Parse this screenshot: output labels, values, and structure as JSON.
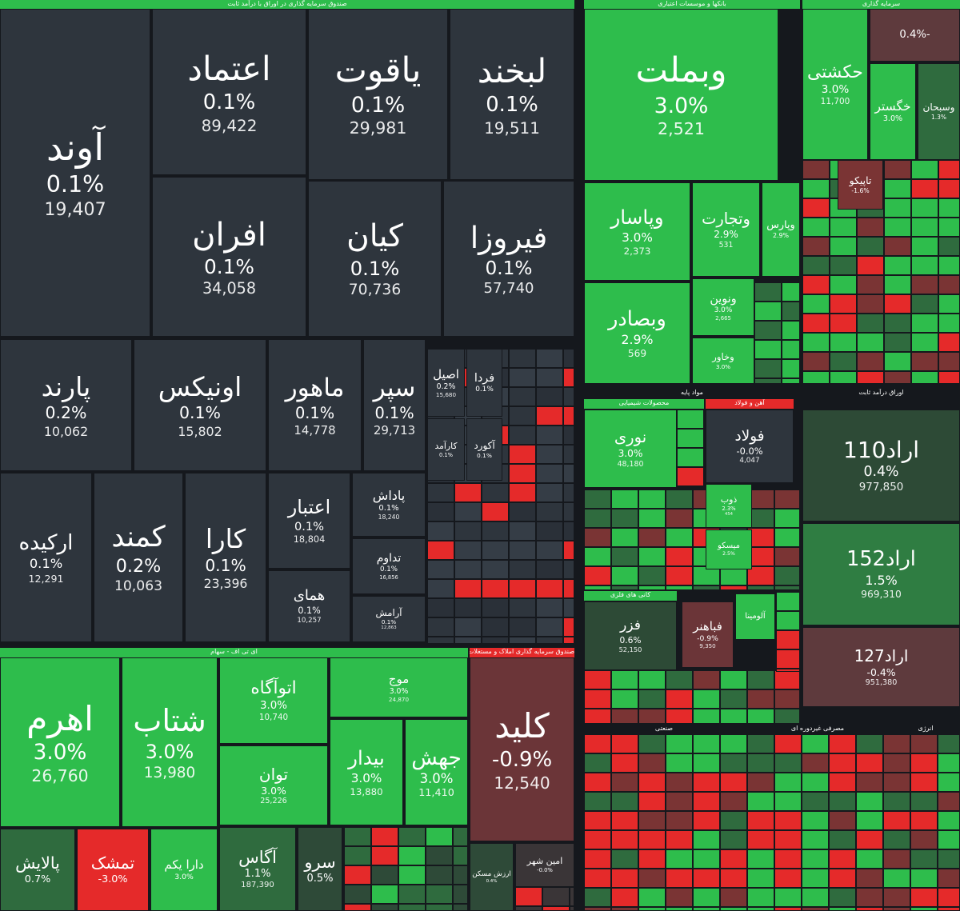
{
  "sections": [
    {
      "title": "صندوق سرمایه گذاری در اوراق با درآمد ثابت",
      "tiles": [
        {
          "name": "آوند",
          "change": "0.1%",
          "volume": "19,407",
          "color": "#2e353d"
        },
        {
          "name": "اعتماد",
          "change": "0.1%",
          "volume": "89,422",
          "color": "#2e353d"
        },
        {
          "name": "یاقوت",
          "change": "0.1%",
          "volume": "29,981",
          "color": "#2e353d"
        },
        {
          "name": "لبخند",
          "change": "0.1%",
          "volume": "19,511",
          "color": "#2e353d"
        },
        {
          "name": "افران",
          "change": "0.1%",
          "volume": "34,058",
          "color": "#2e353d"
        },
        {
          "name": "کیان",
          "change": "0.1%",
          "volume": "70,736",
          "color": "#2e353d"
        },
        {
          "name": "فیروزا",
          "change": "0.1%",
          "volume": "57,740",
          "color": "#2e353d"
        },
        {
          "name": "پارند",
          "change": "0.2%",
          "volume": "10,062",
          "color": "#2e353d"
        },
        {
          "name": "اونیکس",
          "change": "0.1%",
          "volume": "15,802",
          "color": "#2e353d"
        },
        {
          "name": "ماهور",
          "change": "0.1%",
          "volume": "14,778",
          "color": "#2e353d"
        },
        {
          "name": "سپر",
          "change": "0.1%",
          "volume": "29,713",
          "color": "#2e353d"
        },
        {
          "name": "ارکیده",
          "change": "0.1%",
          "volume": "12,291",
          "color": "#2e353d"
        },
        {
          "name": "کمند",
          "change": "0.2%",
          "volume": "10,063",
          "color": "#2e353d"
        },
        {
          "name": "کارا",
          "change": "0.1%",
          "volume": "23,396",
          "color": "#2e353d"
        },
        {
          "name": "اعتبار",
          "change": "0.1%",
          "volume": "18,804",
          "color": "#2e353d"
        },
        {
          "name": "پاداش",
          "change": "0.1%",
          "volume": "18,240",
          "color": "#2e353d"
        },
        {
          "name": "تداوم",
          "change": "0.1%",
          "volume": "16,856",
          "color": "#2e353d"
        },
        {
          "name": "همای",
          "change": "0.1%",
          "volume": "10,257",
          "color": "#2e353d"
        },
        {
          "name": "آرامش",
          "change": "0.1%",
          "volume": "12,863",
          "color": "#2e353d"
        },
        {
          "name": "اصیل",
          "change": "0.2%",
          "volume": "15,680",
          "color": "#2e353d"
        },
        {
          "name": "فردا",
          "change": "0.1%",
          "color": "#2e353d"
        },
        {
          "name": "کارآمد",
          "change": "0.1%",
          "color": "#2e353d"
        },
        {
          "name": "آکورد",
          "change": "0.1%",
          "color": "#2e353d"
        }
      ]
    },
    {
      "title": "بانکها و موسسات اعتباری",
      "tiles": [
        {
          "name": "وبملت",
          "change": "3.0%",
          "volume": "2,521",
          "color": "#2ebd4c"
        },
        {
          "name": "وپاسار",
          "change": "3.0%",
          "volume": "2,373",
          "color": "#2ebd4c"
        },
        {
          "name": "وتجارت",
          "change": "2.9%",
          "volume": "531",
          "color": "#2ebd4c"
        },
        {
          "name": "وپارس",
          "change": "2.9%",
          "color": "#2ebd4c"
        },
        {
          "name": "وبصادر",
          "change": "2.9%",
          "volume": "569",
          "color": "#2ebd4c"
        },
        {
          "name": "ونوین",
          "change": "3.0%",
          "volume": "2,665",
          "color": "#2ebd4c"
        },
        {
          "name": "وخاور",
          "change": "3.0%",
          "color": "#2ebd4c"
        }
      ]
    },
    {
      "title": "سرمایه گذاری",
      "tiles": [
        {
          "name": "حکشتی",
          "change": "3.0%",
          "volume": "11,700",
          "color": "#2ebd4c"
        },
        {
          "name": "-0.4%",
          "color": "#5e3a3d"
        },
        {
          "name": "خگستر",
          "change": "3.0%",
          "color": "#2ebd4c"
        },
        {
          "name": "وسبحان",
          "change": "1.3%",
          "color": "#2f6b3e"
        },
        {
          "name": "تاپیکو",
          "change": "-1.6%",
          "color": "#7a3434"
        }
      ]
    },
    {
      "title": "ای تی اف - سهام",
      "tiles": [
        {
          "name": "اهرم",
          "change": "3.0%",
          "volume": "26,760",
          "color": "#2ebd4c"
        },
        {
          "name": "شتاب",
          "change": "3.0%",
          "volume": "13,980",
          "color": "#2ebd4c"
        },
        {
          "name": "اتوآگاه",
          "change": "3.0%",
          "volume": "10,740",
          "color": "#2ebd4c"
        },
        {
          "name": "موج",
          "change": "3.0%",
          "volume": "24,870",
          "color": "#2ebd4c"
        },
        {
          "name": "توان",
          "change": "3.0%",
          "volume": "25,226",
          "color": "#2ebd4c"
        },
        {
          "name": "بیدار",
          "change": "3.0%",
          "volume": "13,880",
          "color": "#2ebd4c"
        },
        {
          "name": "جهش",
          "change": "3.0%",
          "volume": "11,410",
          "color": "#2ebd4c"
        },
        {
          "name": "پالایش",
          "change": "0.7%",
          "color": "#2f6b3e"
        },
        {
          "name": "تمشک",
          "change": "-3.0%",
          "color": "#e52a2a"
        },
        {
          "name": "دارا یکم",
          "change": "3.0%",
          "color": "#2ebd4c"
        },
        {
          "name": "آگاس",
          "change": "1.1%",
          "volume": "187,390",
          "color": "#2f6b3e"
        },
        {
          "name": "سرو",
          "change": "0.5%",
          "color": "#2e4a38"
        }
      ]
    },
    {
      "title": "صندوق سرمایه گذاری املاک و مستغلات",
      "tiles": [
        {
          "name": "کلید",
          "change": "-0.9%",
          "volume": "12,540",
          "color": "#6b3538"
        },
        {
          "name": "ارزش مسکن",
          "change": "0.4%",
          "color": "#2e4a38"
        },
        {
          "name": "امین شهر",
          "change": "-0.0%",
          "color": "#3a3537"
        }
      ]
    },
    {
      "title": "مواد پایه",
      "tiles": [
        {
          "name": "نوری",
          "change": "3.0%",
          "volume": "48,180",
          "color": "#2ebd4c"
        },
        {
          "name": "فولاد",
          "change": "-0.0%",
          "volume": "4,047",
          "color": "#2e353d"
        },
        {
          "name": "ذوب",
          "change": "2.3%",
          "volume": "454",
          "color": "#2ebd4c"
        },
        {
          "name": "میسکو",
          "change": "2.5%",
          "color": "#2ebd4c"
        },
        {
          "name": "فزر",
          "change": "0.6%",
          "volume": "52,150",
          "color": "#2d4a36"
        },
        {
          "name": "فباهنر",
          "change": "-0.9%",
          "volume": "9,350",
          "color": "#6b3538"
        },
        {
          "name": "آلومینا",
          "color": "#2ebd4c"
        }
      ]
    },
    {
      "title": "اوراق درآمد ثابت",
      "tiles": [
        {
          "name": "اراد110",
          "change": "0.4%",
          "volume": "977,850",
          "color": "#2d4a36"
        },
        {
          "name": "اراد152",
          "change": "1.5%",
          "volume": "969,310",
          "color": "#2f7d42"
        },
        {
          "name": "اراد127",
          "change": "-0.4%",
          "volume": "951,380",
          "color": "#5e3a3d"
        }
      ]
    }
  ],
  "headers": [
    "صنعتی",
    "مصرفی غیردوره ای",
    "انرژی",
    "محصولات شیمیایی",
    "آهن و فولاد",
    "کانی های فلزی"
  ]
}
